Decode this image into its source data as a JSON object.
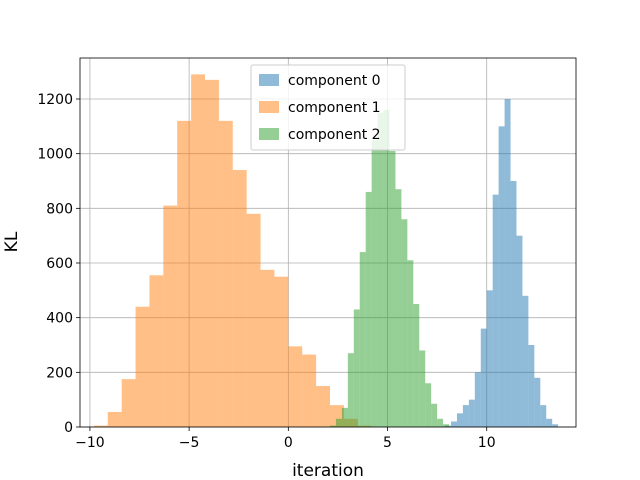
{
  "chart_data": {
    "type": "bar",
    "xlabel": "iteration",
    "ylabel": "KL",
    "xlim": [
      -10.5,
      14.5
    ],
    "ylim": [
      0,
      1350
    ],
    "xticks": [
      -10,
      -5,
      0,
      5,
      10
    ],
    "xtick_labels": [
      "−10",
      "−5",
      "0",
      "5",
      "10"
    ],
    "yticks": [
      0,
      200,
      400,
      600,
      800,
      1000,
      1200
    ],
    "ytick_labels": [
      "0",
      "200",
      "400",
      "600",
      "800",
      "1000",
      "1200"
    ],
    "grid": true,
    "legend_position": "top-center",
    "series": [
      {
        "name": "component 0",
        "color": "#1f77b4",
        "opacity": 0.5,
        "bin_edges": [
          7.9,
          8.2,
          8.5,
          8.8,
          9.1,
          9.4,
          9.7,
          10.0,
          10.3,
          10.6,
          10.9,
          11.2,
          11.5,
          11.8,
          12.1,
          12.4,
          12.7,
          13.0,
          13.3,
          13.6
        ],
        "counts": [
          5,
          20,
          50,
          80,
          100,
          200,
          360,
          500,
          850,
          1100,
          1200,
          900,
          700,
          480,
          300,
          180,
          80,
          30,
          10
        ]
      },
      {
        "name": "component 1",
        "color": "#ff7f0e",
        "opacity": 0.5,
        "bin_edges": [
          -9.8,
          -9.1,
          -8.4,
          -7.7,
          -7.0,
          -6.3,
          -5.6,
          -4.9,
          -4.2,
          -3.5,
          -2.8,
          -2.1,
          -1.4,
          -0.7,
          0.0,
          0.7,
          1.4,
          2.1,
          2.8,
          3.5,
          4.2
        ],
        "counts": [
          5,
          55,
          175,
          440,
          555,
          810,
          1120,
          1290,
          1270,
          1120,
          940,
          780,
          575,
          550,
          295,
          265,
          150,
          80,
          30,
          5
        ]
      },
      {
        "name": "component 2",
        "color": "#2ca02c",
        "opacity": 0.5,
        "bin_edges": [
          2.1,
          2.4,
          2.7,
          3.0,
          3.3,
          3.6,
          3.9,
          4.2,
          4.5,
          4.8,
          5.1,
          5.4,
          5.7,
          6.0,
          6.3,
          6.6,
          6.9,
          7.2,
          7.5,
          7.8,
          8.1
        ],
        "counts": [
          5,
          30,
          70,
          270,
          430,
          640,
          860,
          1050,
          1150,
          1160,
          1010,
          870,
          760,
          610,
          450,
          280,
          160,
          85,
          30,
          10
        ]
      }
    ]
  }
}
